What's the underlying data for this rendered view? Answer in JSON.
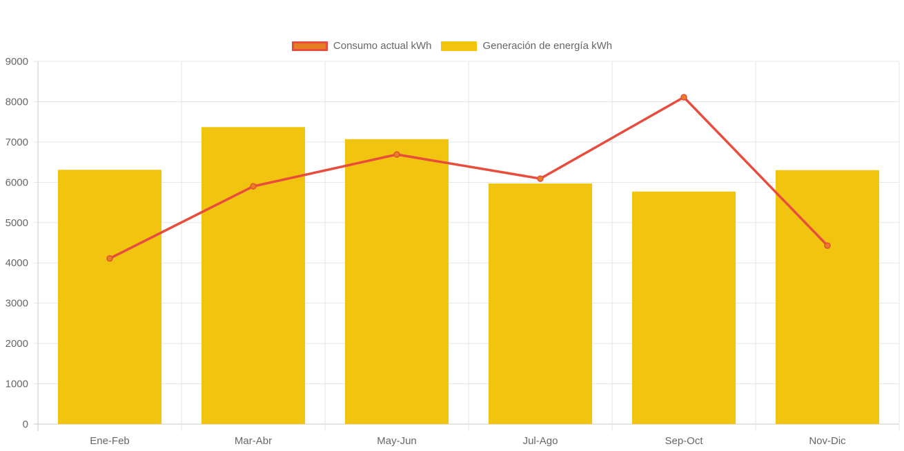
{
  "chart_data": {
    "type": "bar",
    "title": "",
    "xlabel": "",
    "ylabel": "",
    "categories": [
      "Ene-Feb",
      "Mar-Abr",
      "May-Jun",
      "Jul-Ago",
      "Sep-Oct",
      "Nov-Dic"
    ],
    "ylim": [
      0,
      9000
    ],
    "yticks": [
      0,
      1000,
      2000,
      3000,
      4000,
      5000,
      6000,
      7000,
      8000,
      9000
    ],
    "grid": true,
    "legend_position": "top-center",
    "series": [
      {
        "name": "Consumo actual kWh",
        "type": "line",
        "color": "#e74c3c",
        "fill": "#e67e22",
        "values": [
          4110,
          5900,
          6690,
          6090,
          8110,
          4430
        ]
      },
      {
        "name": "Generación de energía kWh",
        "type": "bar",
        "color": "#f1c40f",
        "values": [
          6310,
          7370,
          7070,
          5970,
          5770,
          6300
        ]
      }
    ]
  }
}
